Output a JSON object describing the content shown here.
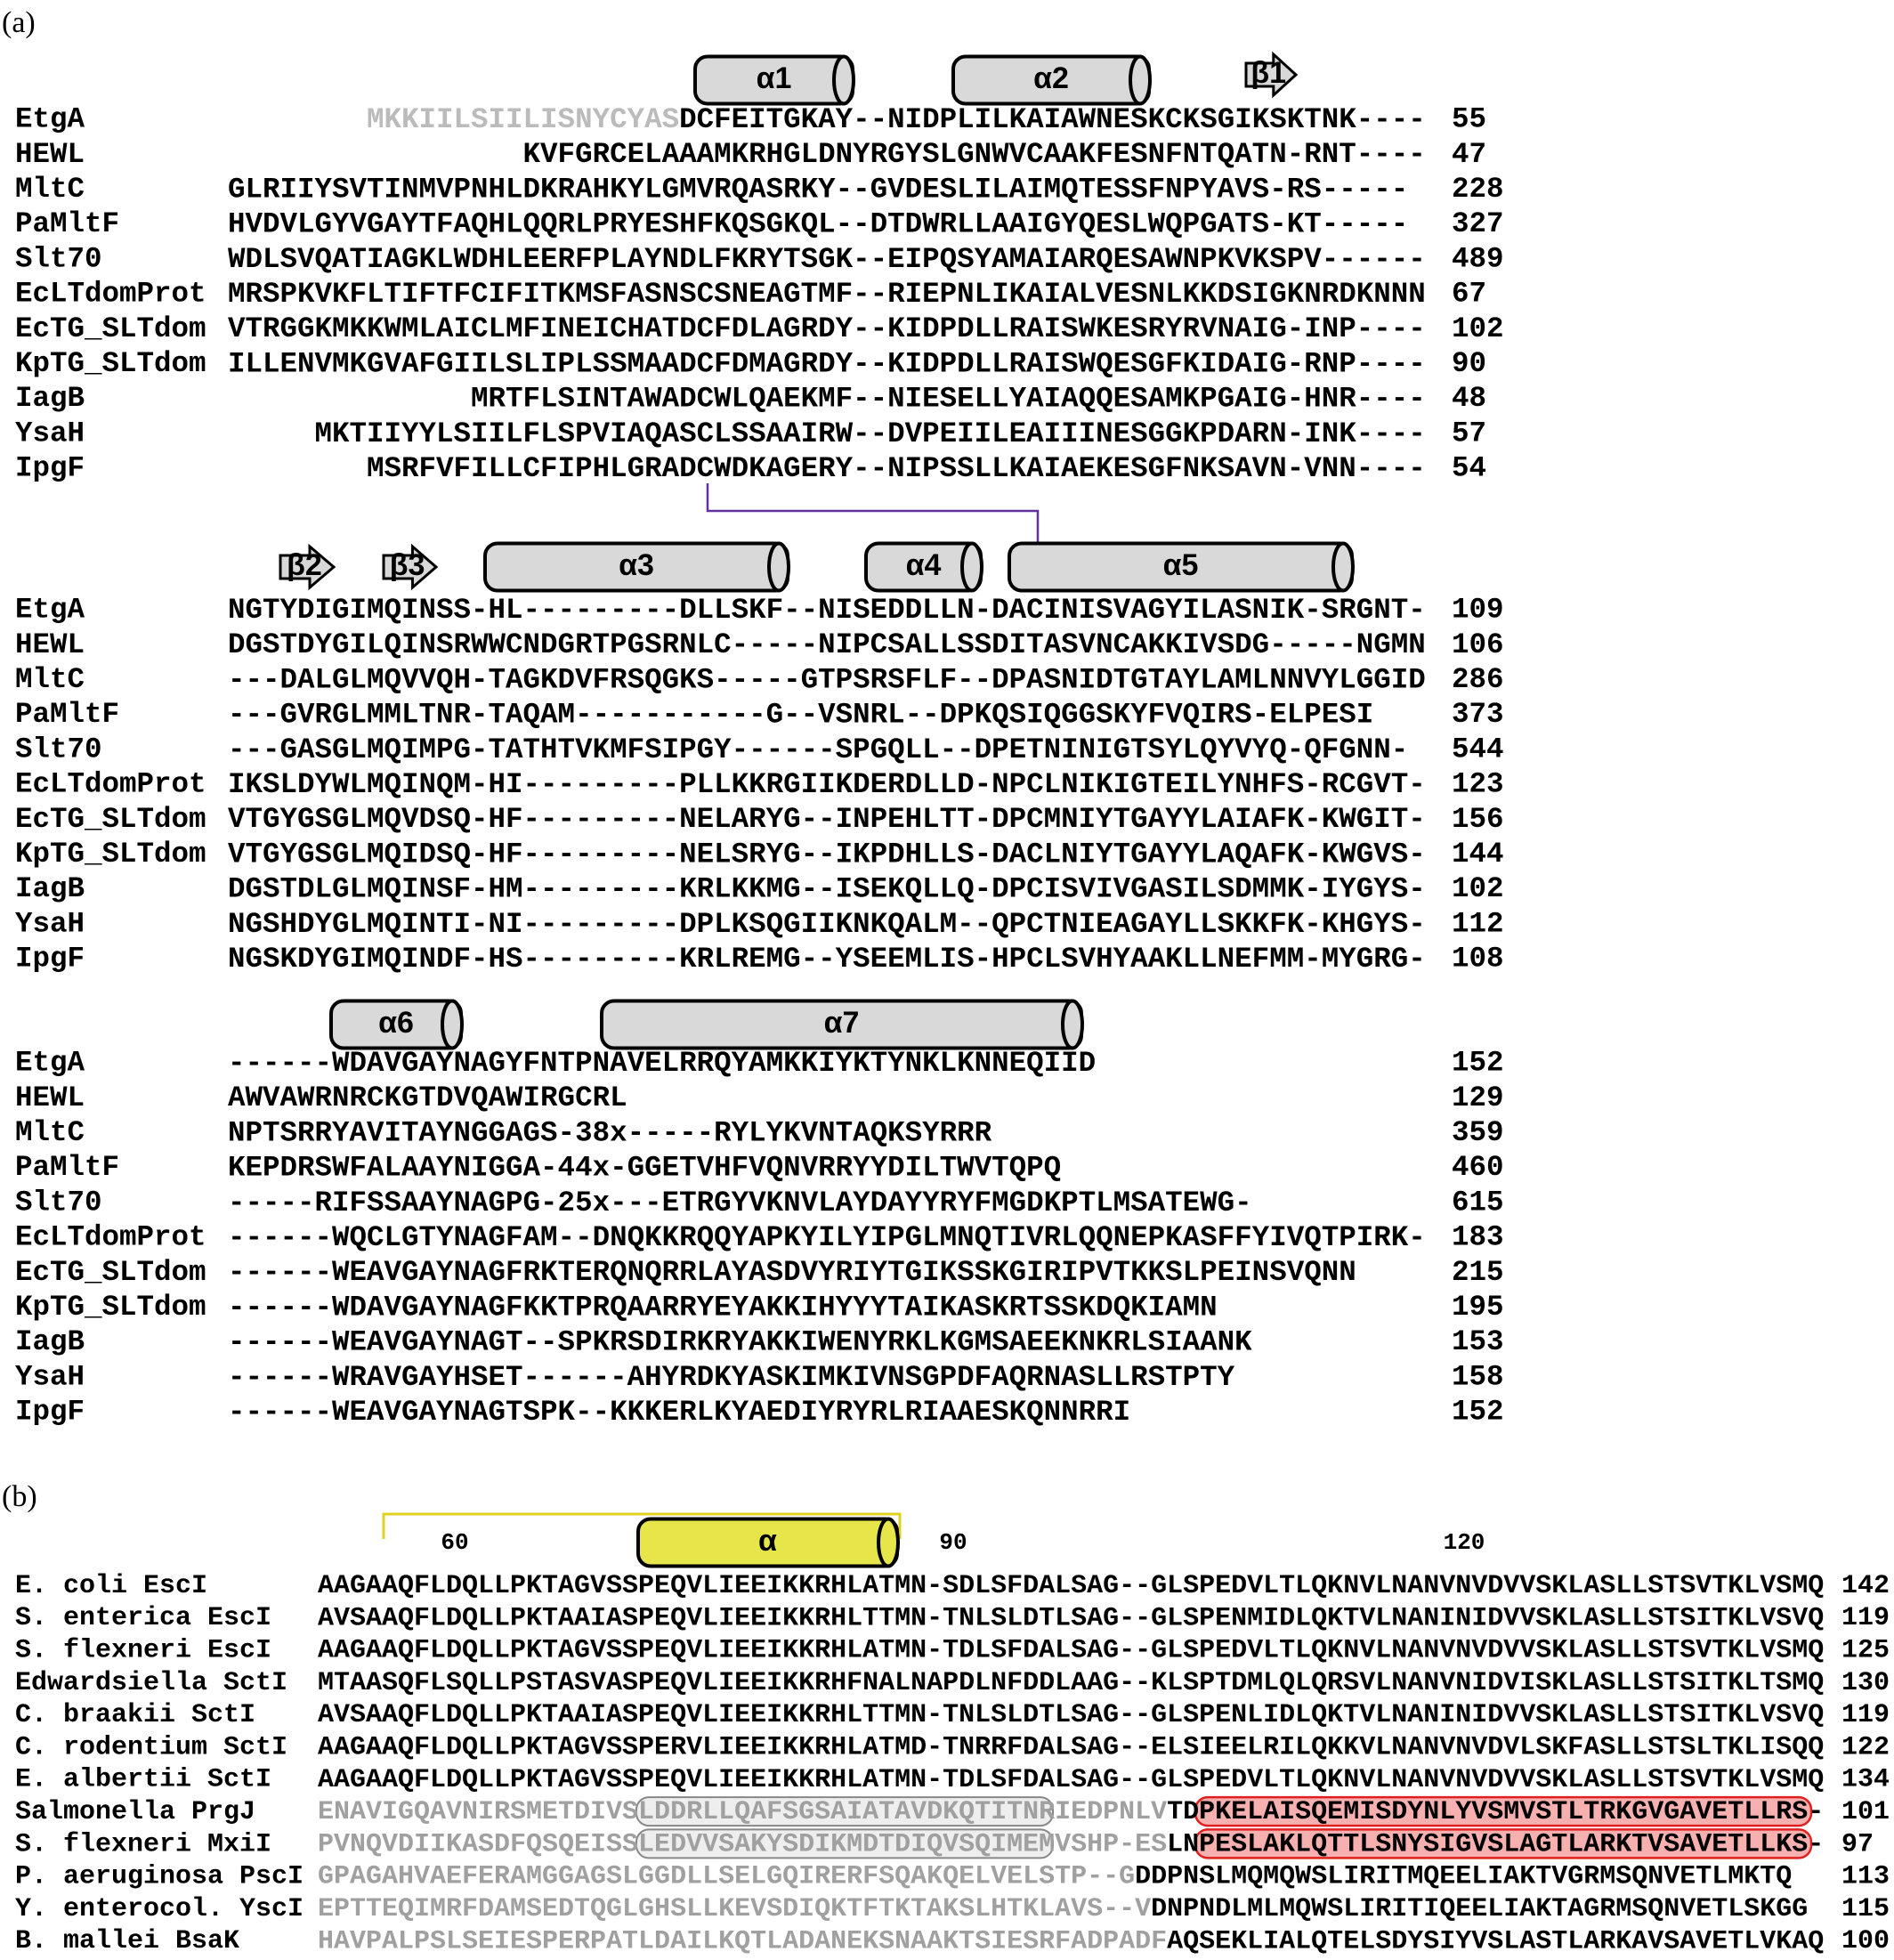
{
  "panel_a": {
    "label": "(a)",
    "blocks": [
      {
        "structure": [
          "α1",
          "α2",
          "β1"
        ],
        "rows": [
          {
            "name": "EtgA",
            "muted": "        MKKIILSIILISNYCYAS",
            "sequence": "DCFEITGKAY--NIDPLILKAIAWNESKCKSGIKSKTNK----",
            "number": 55
          },
          {
            "name": "HEWL",
            "sequence": "                 KVFGRCELAAAMKRHGLDNYRGYSLGNWVCAAKFESNFNTQATN-RNT----",
            "number": 47
          },
          {
            "name": "MltC",
            "sequence": "GLRIIYSVTINMVPNHLDKRAHKYLGMVRQASRKY--GVDESLILAIMQTESSFNPYAVS-RS-----",
            "number": 228
          },
          {
            "name": "PaMltF",
            "sequence": "HVDVLGYVGAYTFAQHLQQRLPRYESHFKQSGKQL--DTDWRLLAAIGYQESLWQPGATS-KT-----",
            "number": 327
          },
          {
            "name": "Slt70",
            "sequence": "WDLSVQATIAGKLWDHLEERFPLAYNDLFKRYTSGK--EIPQSYAMAIARQESAWNPKVKSPV------",
            "number": 489
          },
          {
            "name": "EcLTdomProt",
            "sequence": "MRSPKVKFLTIFTFCIFITKMSFASNSCSNEAGTMF--RIEPNLIKAIALVESNLKKDSIGKNRDKNNN",
            "number": 67
          },
          {
            "name": "EcTG_SLTdom",
            "sequence": "VTRGGKMKKWMLAICLMFINEICHATDCFDLAGRDY--KIDPDLLRAISWKESRYRVNAIG-INP----",
            "number": 102
          },
          {
            "name": "KpTG_SLTdom",
            "sequence": "ILLENVMKGVAFGIILSLIPLSSMAADCFDMAGRDY--KIDPDLLRAISWQESGFKIDAIG-RNP----",
            "number": 90
          },
          {
            "name": "IagB",
            "sequence": "              MRTFLSINTAWADCWLQAEKMF--NIESELLYAIAQQESAMKPGAIG-HNR----",
            "number": 48
          },
          {
            "name": "YsaH",
            "sequence": "     MKTIIYYLSIILFLSPVIAQASCLSSAAIRW--DVPEIILEAIIINESGGKPDARN-INK----",
            "number": 57
          },
          {
            "name": "IpgF",
            "sequence": "        MSRFVFILLCFIPHLGRADCWDKAGERY--NIPSSLLKAIAEKESGFNKSAVN-VNN----",
            "number": 54
          }
        ]
      },
      {
        "structure": [
          "β2",
          "β3",
          "α3",
          "α4",
          "α5"
        ],
        "rows": [
          {
            "name": "EtgA",
            "sequence": "NGTYDIGIMQINSS-HL---------DLLSKF--NISEDDLLN-DACINISVAGYILASNIK-SRGNT-",
            "number": 109
          },
          {
            "name": "HEWL",
            "sequence": "DGSTDYGILQINSRWWCNDGRTPGSRNLC-----NIPCSALLSSDITASVNCAKKIVSDG-----NGMN",
            "number": 106
          },
          {
            "name": "MltC",
            "sequence": "---DALGLMQVVQH-TAGKDVFRSQGKS-----GTPSRSFLF--DPASNIDTGTAYLAMLNNVYLGGID",
            "number": 286
          },
          {
            "name": "PaMltF",
            "sequence": "---GVRGLMMLTNR-TAQAM-----------G--VSNRL--DPKQSIQGGSKYFVQIRS-ELPESI",
            "number": 373
          },
          {
            "name": "Slt70",
            "sequence": "---GASGLMQIMPG-TATHTVKMFSIPGY------SPGQLL--DPETNINIGTSYLQYVYQ-QFGNN-",
            "number": 544
          },
          {
            "name": "EcLTdomProt",
            "sequence": "IKSLDYWLMQINQM-HI---------PLLKKRGIIKDERDLLD-NPCLNIKIGTEILYNHFS-RCGVT-",
            "number": 123
          },
          {
            "name": "EcTG_SLTdom",
            "sequence": "VTGYGSGLMQVDSQ-HF---------NELARYG--INPEHLTT-DPCMNIYTGAYYLAIAFK-KWGIT-",
            "number": 156
          },
          {
            "name": "KpTG_SLTdom",
            "sequence": "VTGYGSGLMQIDSQ-HF---------NELSRYG--IKPDHLLS-DACLNIYTGAYYLAQAFK-KWGVS-",
            "number": 144
          },
          {
            "name": "IagB",
            "sequence": "DGSTDLGLMQINSF-HM---------KRLKKMG--ISEKQLLQ-DPCISVIVGASILSDMMK-IYGYS-",
            "number": 102
          },
          {
            "name": "YsaH",
            "sequence": "NGSHDYGLMQINTI-NI---------DPLKSQGIIKNKQALM--QPCTNIEAGAYLLSKKFK-KHGYS-",
            "number": 112
          },
          {
            "name": "IpgF",
            "sequence": "NGSKDYGIMQINDF-HS---------KRLREMG--YSEEMLIS-HPCLSVHYAAKLLNEFMM-MYGRG-",
            "number": 108
          }
        ]
      },
      {
        "structure": [
          "α6",
          "α7"
        ],
        "rows": [
          {
            "name": "EtgA",
            "sequence": "------WDAVGAYNAGYFNTPNAVELRRQYAMKKIYKTYNKLKNNEQIID",
            "number": 152
          },
          {
            "name": "HEWL",
            "sequence": "AWVAWRNRCKGTDVQAWIRGCRL",
            "number": 129
          },
          {
            "name": "MltC",
            "sequence": "NPTSRRYAVITAYNGGAGS-38x-----RYLYKVNTAQKSYRRR",
            "number": 359
          },
          {
            "name": "PaMltF",
            "sequence": "KEPDRSWFALAAYNIGGA-44x-GGETVHFVQNVRRYYDILTWVTQPQ",
            "number": 460
          },
          {
            "name": "Slt70",
            "sequence": "-----RIFSSAAYNAGPG-25x---ETRGYVKNVLAYDAYYRYFMGDKPTLMSATEWG-",
            "number": 615
          },
          {
            "name": "EcLTdomProt",
            "sequence": "------WQCLGTYNAGFAM--DNQKKRQQYAPKYILYIPGLMNQTIVRLQQNEPKASFFYIVQTPIRK-",
            "number": 183
          },
          {
            "name": "EcTG_SLTdom",
            "sequence": "------WEAVGAYNAGFRKTERQNQRRLAYASDVYRIYTGIKSSKGIRIPVTKKSLPEINSVQNN",
            "number": 215
          },
          {
            "name": "KpTG_SLTdom",
            "sequence": "------WDAVGAYNAGFKKTPRQAARRYEYAKKIHYYYTAIKASKRTSSKDQKIAMN",
            "number": 195
          },
          {
            "name": "IagB",
            "sequence": "------WEAVGAYNAGT--SPKRSDIRKRYAKKIWENYRKLKGMSAEEKNKRLSIAANK",
            "number": 153
          },
          {
            "name": "YsaH",
            "sequence": "------WRAVGAYHSET------AHYRDKYASKIMKIVNSGPDFAQRNASLLRSTPTY",
            "number": 158
          },
          {
            "name": "IpgF",
            "sequence": "------WEAVGAYNAGTSPK--KKKERLKYAEDIYRYRLRIAAESKQNNRRI",
            "number": 152
          }
        ]
      }
    ]
  },
  "panel_b": {
    "label": "(b)",
    "ruler": [
      60,
      90,
      120
    ],
    "structure": [
      "α"
    ],
    "rows": [
      {
        "name": "E. coli EscI",
        "sequence": "AAGAAQFLDQLLPKTAGVSSPEQVLIEEIKKRHLATMN-SDLSFDALSAG--GLSPEDVLTLQKNVLNANVNVDVVSKLASLLSTSVTKLVSMQ",
        "number": 142
      },
      {
        "name": "S. enterica EscI",
        "sequence": "AVSAAQFLDQLLPKTAAIASPEQVLIEEIKKRHLTTMN-TNLSLDTLSAG--GLSPENMIDLQKTVLNANINIDVVSKLASLLSTSITKLVSVQ",
        "number": 119
      },
      {
        "name": "S. flexneri EscI",
        "sequence": "AAGAAQFLDQLLPKTAGVSSPEQVLIEEIKKRHLATMN-TDLSFDALSAG--GLSPEDVLTLQKNVLNANVNVDVVSKLASLLSTSVTKLVSMQ",
        "number": 125
      },
      {
        "name": "Edwardsiella SctI",
        "sequence": "MTAASQFLSQLLPSTASVASPEQVLIEEIKKRHFNALNAPDLNFDDLAAG--KLSPTDMLQLQRSVLNANVNIDVISKLASLLSTSITKLTSMQ",
        "number": 130
      },
      {
        "name": "C. braakii SctI",
        "sequence": "AVSAAQFLDQLLPKTAAIASPEQVLIEEIKKRHLTTMN-TNLSLDTLSAG--GLSPENLIDLQKTVLNANINIDVVSKLASLLSTSITKLVSVQ",
        "number": 119
      },
      {
        "name": "C. rodentium SctI",
        "sequence": "AAGAAQFLDQLLPKTAGVSSPERVLIEEIKKRHLATMD-TNRRFDALSAG--ELSIEELRILQKKVLNANVNVDVLSKFASLLSTSLTKLISQQ",
        "number": 122
      },
      {
        "name": "E. albertii SctI",
        "sequence": "AAGAAQFLDQLLPKTAGVSSPEQVLIEEIKKRHLATMN-TDLSFDALSAG--GLSPEDVLTLQKNVLNANVNVDVVSKLASLLSTSVTKLVSMQ",
        "number": 134
      },
      {
        "name": "Salmonella PrgJ",
        "muted": "ENAVIGQAVNIRSMETDIVSLDDRLLQAFSGSAIATAVDKQTITNRIEDPNLV",
        "sequence": "TDPKELAISQEMISDYNLYVSMVSTLTRKGVGAVETLLRS-",
        "number": 101
      },
      {
        "name": "S. flexneri MxiI",
        "muted": "PVNQVDIIKASDFQSQEISSLEDVVSAKYSDIKMDTDIQVSQIMEMVSHP-ES",
        "sequence": "LNPESLAKLQTTLSNYSIGVSLAGTLARKTVSAVETLLKS-",
        "number": 97
      },
      {
        "name": "P. aeruginosa PscI",
        "muted": "GPAGAHVAEFERAMGGAGSLGGDLLSELGQIRERFSQAKQELVELSTP--G",
        "sequence": "DDPNSLMQMQWSLIRITMQEELIAKTVGRMSQNVETLMKTQ",
        "number": 113
      },
      {
        "name": "Y. enterocol. YscI",
        "muted": "EPTTEQIMRFDAMSEDTQGLGHSLLKEVSDIQKTFTKTAKSLHTKLAVS--V",
        "sequence": "DNPNDLMLMQWSLIRITIQEELIAKTAGRMSQNVETLSKGG",
        "number": 115
      },
      {
        "name": "B. mallei BsaK",
        "muted": "HAVPALPSLSEIESPERPATLDAILKQTLADANEKSNAAKTSIESRFADPADF",
        "sequence": "AQSEKLIALQTELSDYSIYVSLASTLARKAVSAVETLVKAQ",
        "number": 100
      }
    ]
  }
}
